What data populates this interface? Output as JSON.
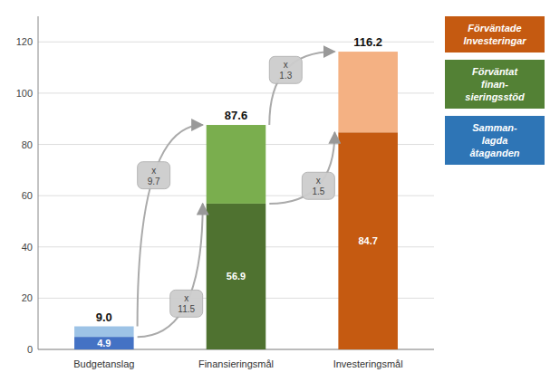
{
  "chart_data": {
    "type": "bar",
    "stacked": true,
    "categories": [
      "Budgetanslag",
      "Finansieringsmål",
      "Investeringsmål"
    ],
    "series": [
      {
        "values": [
          4.9,
          56.9,
          84.7
        ],
        "colors": [
          "#4472C4",
          "#4F7230",
          "#C55A11"
        ],
        "data_labels": true
      },
      {
        "values": [
          4.1,
          30.7,
          31.5
        ],
        "colors": [
          "#9DC3E6",
          "#7AAE4E",
          "#F4B183"
        ]
      }
    ],
    "totals": {
      "values": [
        9.0,
        87.6,
        116.2
      ],
      "value_labels": [
        "9.0",
        "87.6",
        "116.2"
      ]
    },
    "annotations": [
      {
        "text": "x\n9.7"
      },
      {
        "text": "x\n11.5"
      },
      {
        "text": "x\n1.3"
      },
      {
        "text": "x\n1.5"
      }
    ],
    "legend": "right",
    "legend_items": [
      {
        "label": "Förväntade\nInvesteringar",
        "color": "#C55A11"
      },
      {
        "label": "Förväntat\nfinan-\nsieringsstöd",
        "color": "#538135"
      },
      {
        "label": "Samman-\nlagda\nåtaganden",
        "color": "#2E75B6"
      }
    ],
    "ylim": [
      0,
      130
    ],
    "yticks": [
      0,
      20,
      40,
      60,
      80,
      100,
      120
    ],
    "grid": true
  }
}
